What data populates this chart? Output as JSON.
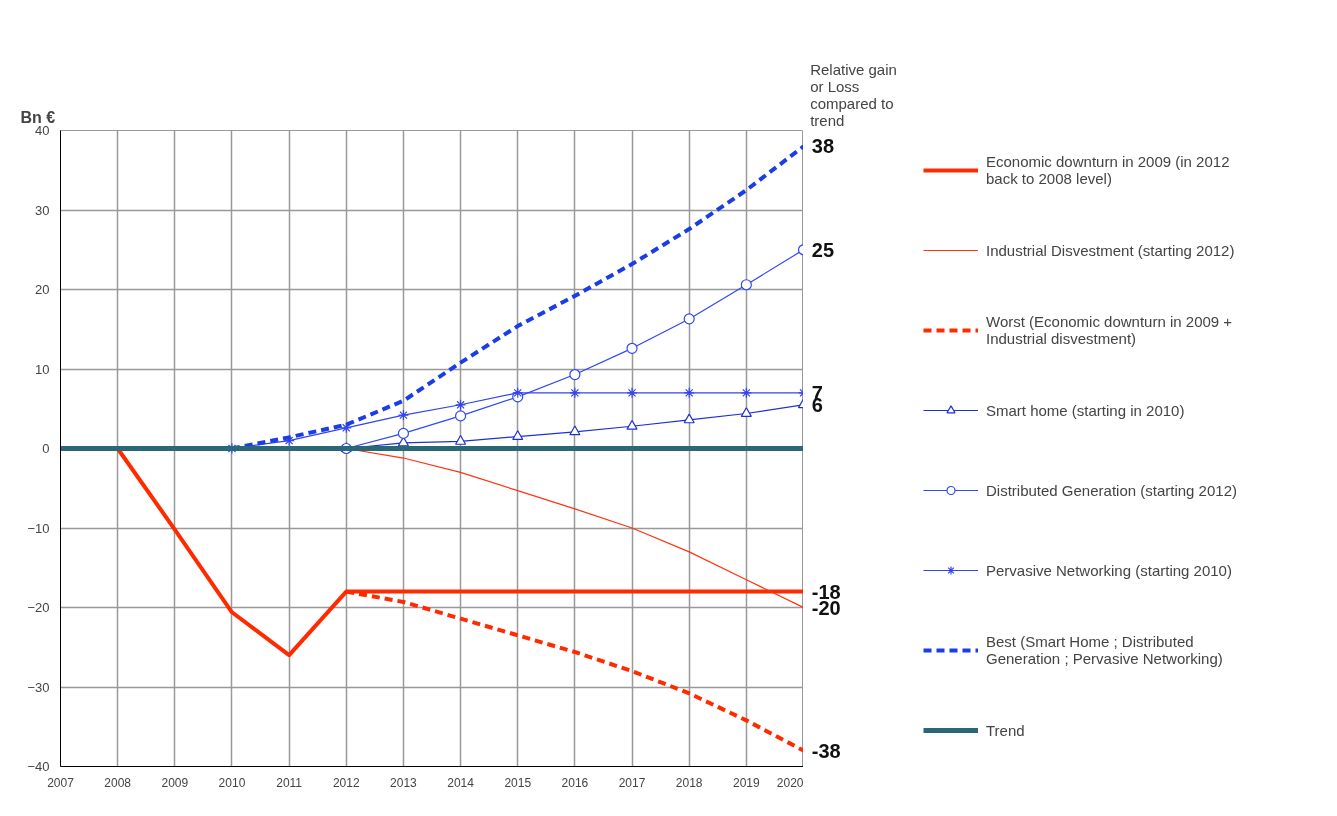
{
  "chart_data": {
    "type": "line",
    "ylabel": "Bn €",
    "x": [
      2007,
      2008,
      2009,
      2010,
      2011,
      2012,
      2013,
      2014,
      2015,
      2016,
      2017,
      2018,
      2019,
      2020
    ],
    "xlim": [
      2007,
      2020
    ],
    "xticks": [
      2007,
      2008,
      2009,
      2010,
      2011,
      2012,
      2013,
      2014,
      2015,
      2016,
      2017,
      2018,
      2019,
      2020
    ],
    "ylim": [
      -40,
      40
    ],
    "yticks": [
      -40,
      -30,
      -20,
      -10,
      0,
      10,
      20,
      30,
      40
    ],
    "grid": true,
    "legend": "right",
    "series": [
      {
        "name": "Economic downturn in 2009 (in 2012 back to 2008 level)",
        "color": "#ff2a00",
        "line_style": "solid",
        "marker": "none",
        "values": [
          null,
          0,
          -10.2,
          -20.6,
          -26,
          -18,
          -18,
          -18,
          -18,
          -18,
          -18,
          -18,
          -18,
          -18
        ],
        "value_labels": [
          null,
          null,
          null,
          null,
          null,
          null,
          null,
          null,
          null,
          null,
          null,
          null,
          null,
          "-18"
        ]
      },
      {
        "name": "Industrial Disvestment (starting 2012)",
        "color": "#ff3311",
        "line_style": "solid",
        "marker": "none",
        "values": [
          null,
          null,
          null,
          null,
          null,
          0,
          -1.2,
          -3,
          -5.3,
          -7.6,
          -10,
          -13,
          -16.5,
          -20
        ],
        "value_labels": [
          null,
          null,
          null,
          null,
          null,
          null,
          null,
          null,
          null,
          null,
          null,
          null,
          null,
          "-20"
        ]
      },
      {
        "name": "Worst (Economic downturn in 2009 + Industrial disvestment)",
        "color": "#ff2a00",
        "line_style": "dashed",
        "marker": "none",
        "values": [
          null,
          null,
          null,
          null,
          null,
          -18,
          -19.3,
          -21.4,
          -23.5,
          -25.6,
          -28,
          -30.8,
          -34.2,
          -38
        ],
        "value_labels": [
          null,
          null,
          null,
          null,
          null,
          null,
          null,
          null,
          null,
          null,
          null,
          null,
          null,
          "-38"
        ]
      },
      {
        "name": "Smart home (starting in 2010)",
        "color": "#1f2fd8",
        "line_style": "solid",
        "marker": "triangle",
        "values": [
          null,
          null,
          null,
          null,
          null,
          0,
          0.7,
          0.9,
          1.5,
          2.1,
          2.8,
          3.6,
          4.4,
          5.5
        ],
        "value_labels": [
          null,
          null,
          null,
          null,
          null,
          null,
          null,
          null,
          null,
          null,
          null,
          null,
          null,
          "6"
        ]
      },
      {
        "name": "Distributed Generation (starting 2012)",
        "color": "#3048f5",
        "line_style": "solid",
        "marker": "circle",
        "values": [
          null,
          null,
          null,
          null,
          null,
          0,
          1.9,
          4.1,
          6.5,
          9.3,
          12.6,
          16.3,
          20.6,
          25
        ],
        "value_labels": [
          null,
          null,
          null,
          null,
          null,
          null,
          null,
          null,
          null,
          null,
          null,
          null,
          null,
          "25"
        ]
      },
      {
        "name": "Pervasive Networking (starting 2010)",
        "color": "#3344ee",
        "line_style": "solid",
        "marker": "cross",
        "values": [
          null,
          null,
          null,
          0,
          1,
          2.6,
          4.2,
          5.5,
          7,
          7,
          7,
          7,
          7,
          7
        ],
        "value_labels": [
          null,
          null,
          null,
          null,
          null,
          null,
          null,
          null,
          null,
          null,
          null,
          null,
          null,
          "7"
        ]
      },
      {
        "name": "Best (Smart Home ; Distributed Generation ; Pervasive Networking)",
        "color": "#1a3de8",
        "line_style": "dashed",
        "marker": "none",
        "values": [
          null,
          null,
          null,
          0,
          1.4,
          3,
          6,
          10.8,
          15.4,
          19.2,
          23.2,
          27.6,
          32.5,
          38
        ],
        "value_labels": [
          null,
          null,
          null,
          null,
          null,
          null,
          null,
          null,
          null,
          null,
          null,
          null,
          null,
          "38"
        ]
      },
      {
        "name": "Trend",
        "color": "#2a6878",
        "line_style": "solid",
        "marker": "none",
        "values": [
          0,
          0,
          0,
          0,
          0,
          0,
          0,
          0,
          0,
          0,
          0,
          0,
          0,
          0
        ]
      }
    ],
    "annotations": [
      "Relative gain or Loss compared to trend"
    ]
  }
}
